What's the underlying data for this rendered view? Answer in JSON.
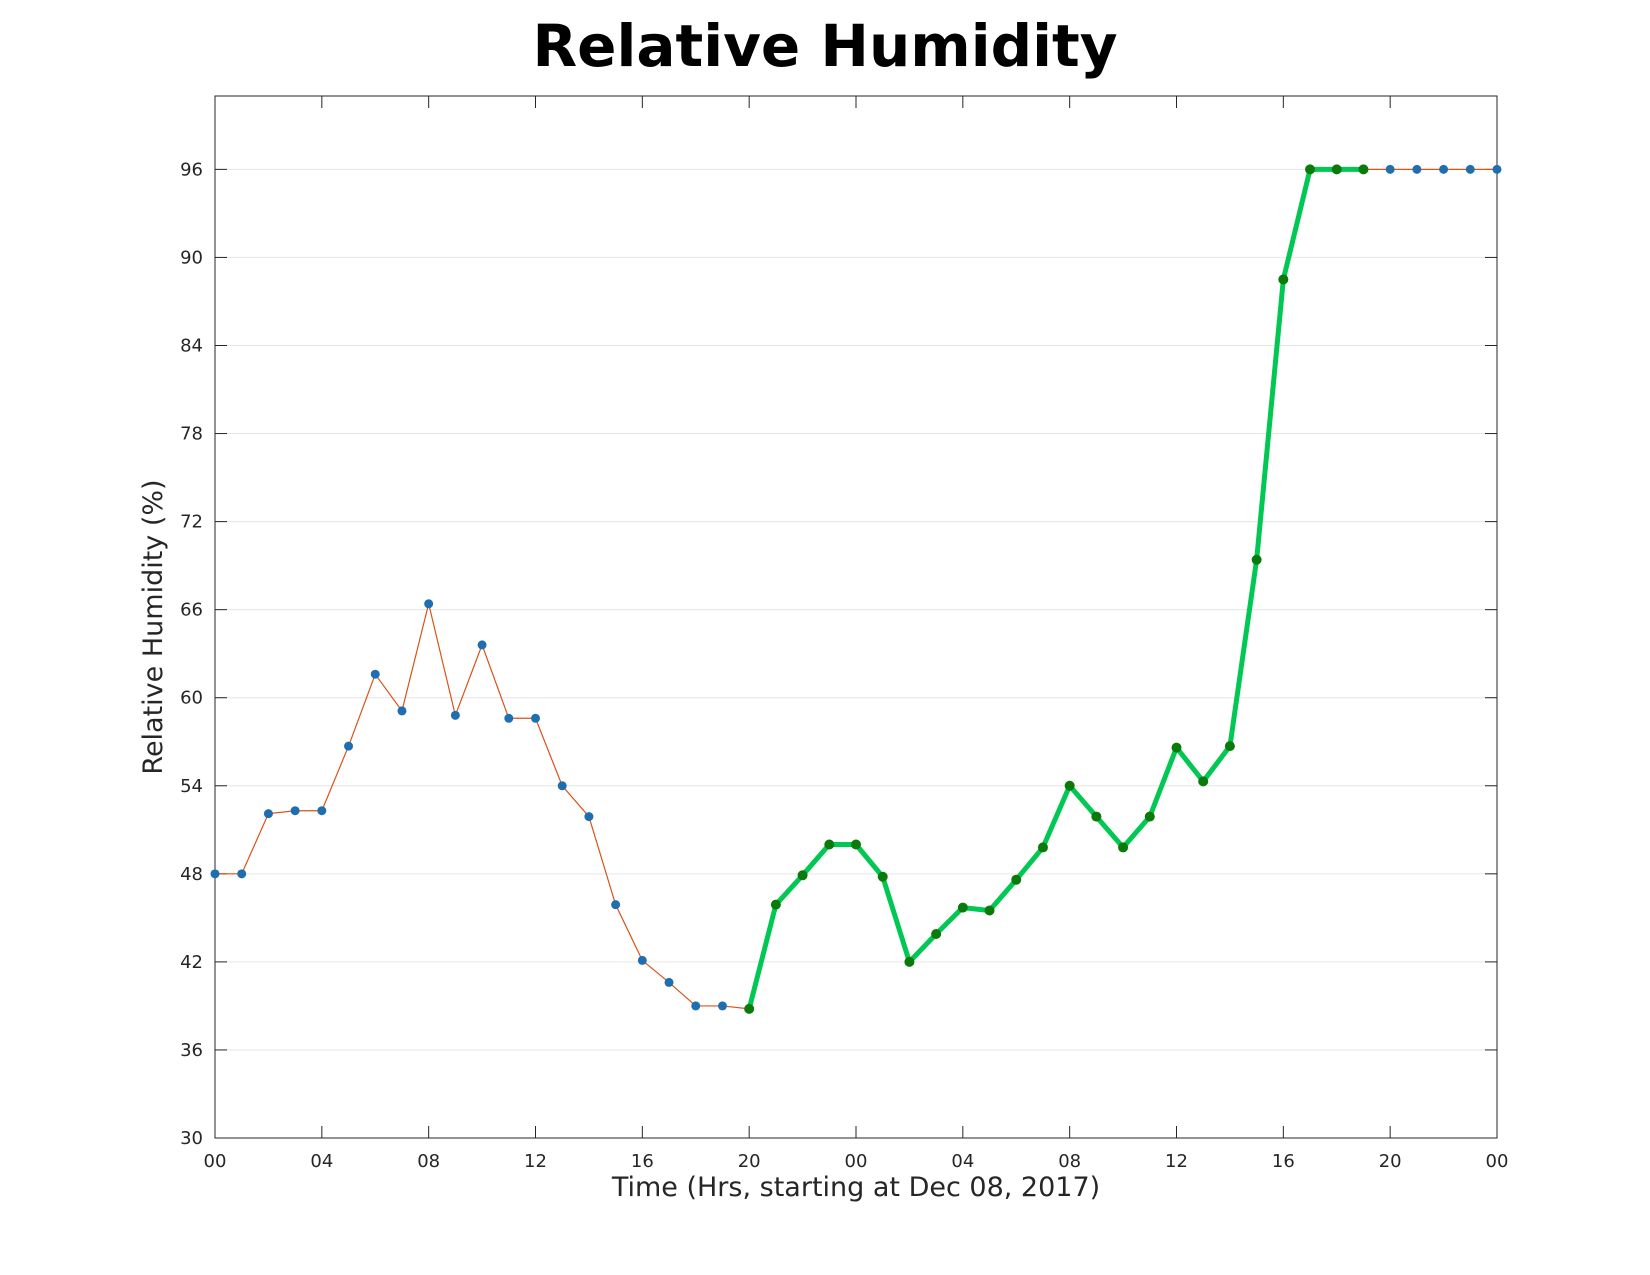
{
  "chart_data": {
    "type": "line",
    "title": "Relative Humidity",
    "xlabel": "Time (Hrs, starting at Dec 08, 2017)",
    "ylabel": "Relative Humidity (%)",
    "ylim": [
      30,
      101
    ],
    "xlim": [
      0,
      48
    ],
    "y_ticks": [
      "30",
      "36",
      "42",
      "48",
      "54",
      "60",
      "66",
      "72",
      "78",
      "84",
      "90",
      "96"
    ],
    "x_ticks": [
      "00",
      "04",
      "08",
      "12",
      "16",
      "20",
      "00",
      "04",
      "08",
      "12",
      "16",
      "20",
      "00"
    ],
    "grid": "horizontal",
    "colors": {
      "observed_line": "#d95319",
      "observed_marker": "#1f6fb0",
      "highlight_line": "#00c853",
      "highlight_marker": "#0a7a0a",
      "grid": "#e6e6e6",
      "axes": "#262626"
    },
    "series": [
      {
        "x": [
          0,
          1,
          2,
          3,
          4,
          5,
          6,
          7,
          8,
          9,
          10,
          11,
          12,
          13,
          14,
          15,
          16,
          17,
          18,
          19,
          20,
          21,
          22,
          23,
          24,
          25,
          26,
          27,
          28,
          29,
          30,
          31,
          32,
          33,
          34,
          35,
          36,
          37,
          38,
          39,
          40,
          41,
          42,
          43,
          44,
          45,
          46,
          47,
          48
        ],
        "values": [
          48.0,
          48.0,
          52.1,
          52.3,
          52.3,
          56.7,
          61.6,
          59.1,
          66.4,
          58.8,
          63.6,
          58.6,
          58.6,
          54.0,
          51.9,
          45.9,
          42.1,
          40.6,
          39.0,
          39.0,
          38.8,
          45.9,
          47.9,
          50.0,
          50.0,
          47.8,
          42.0,
          43.9,
          45.7,
          45.5,
          47.6,
          49.8,
          54.0,
          51.9,
          49.8,
          51.9,
          56.6,
          54.3,
          56.7,
          69.4,
          88.5,
          96.0,
          96.0,
          96.0,
          96.0,
          96.0,
          96.0,
          96.0,
          96.0
        ]
      },
      {
        "x": [
          20,
          21,
          22,
          23,
          24,
          25,
          26,
          27,
          28,
          29,
          30,
          31,
          32,
          33,
          34,
          35,
          36,
          37,
          38,
          39,
          40,
          41,
          42,
          43
        ],
        "values": [
          38.8,
          45.9,
          47.9,
          50.0,
          50.0,
          47.8,
          42.0,
          43.9,
          45.7,
          45.5,
          47.6,
          49.8,
          54.0,
          51.9,
          49.8,
          51.9,
          56.6,
          54.3,
          56.7,
          69.4,
          88.5,
          96.0,
          96.0,
          96.0
        ]
      }
    ]
  }
}
